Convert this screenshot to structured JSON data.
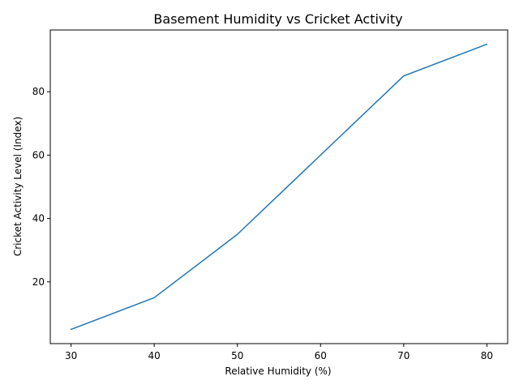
{
  "chart_data": {
    "type": "line",
    "title": "Basement Humidity vs Cricket Activity",
    "xlabel": "Relative Humidity (%)",
    "ylabel": "Cricket Activity Level (Index)",
    "x": [
      30,
      40,
      50,
      70,
      80
    ],
    "series": [
      {
        "values": [
          5,
          15,
          35,
          85,
          95
        ],
        "color": "#1f77b4"
      }
    ],
    "xlim": [
      27.5,
      82.5
    ],
    "ylim": [
      0.5,
      99.5
    ],
    "xticks": [
      30,
      40,
      50,
      60,
      70,
      80
    ],
    "yticks": [
      20,
      40,
      60,
      80
    ],
    "grid": false,
    "legend": "none"
  }
}
